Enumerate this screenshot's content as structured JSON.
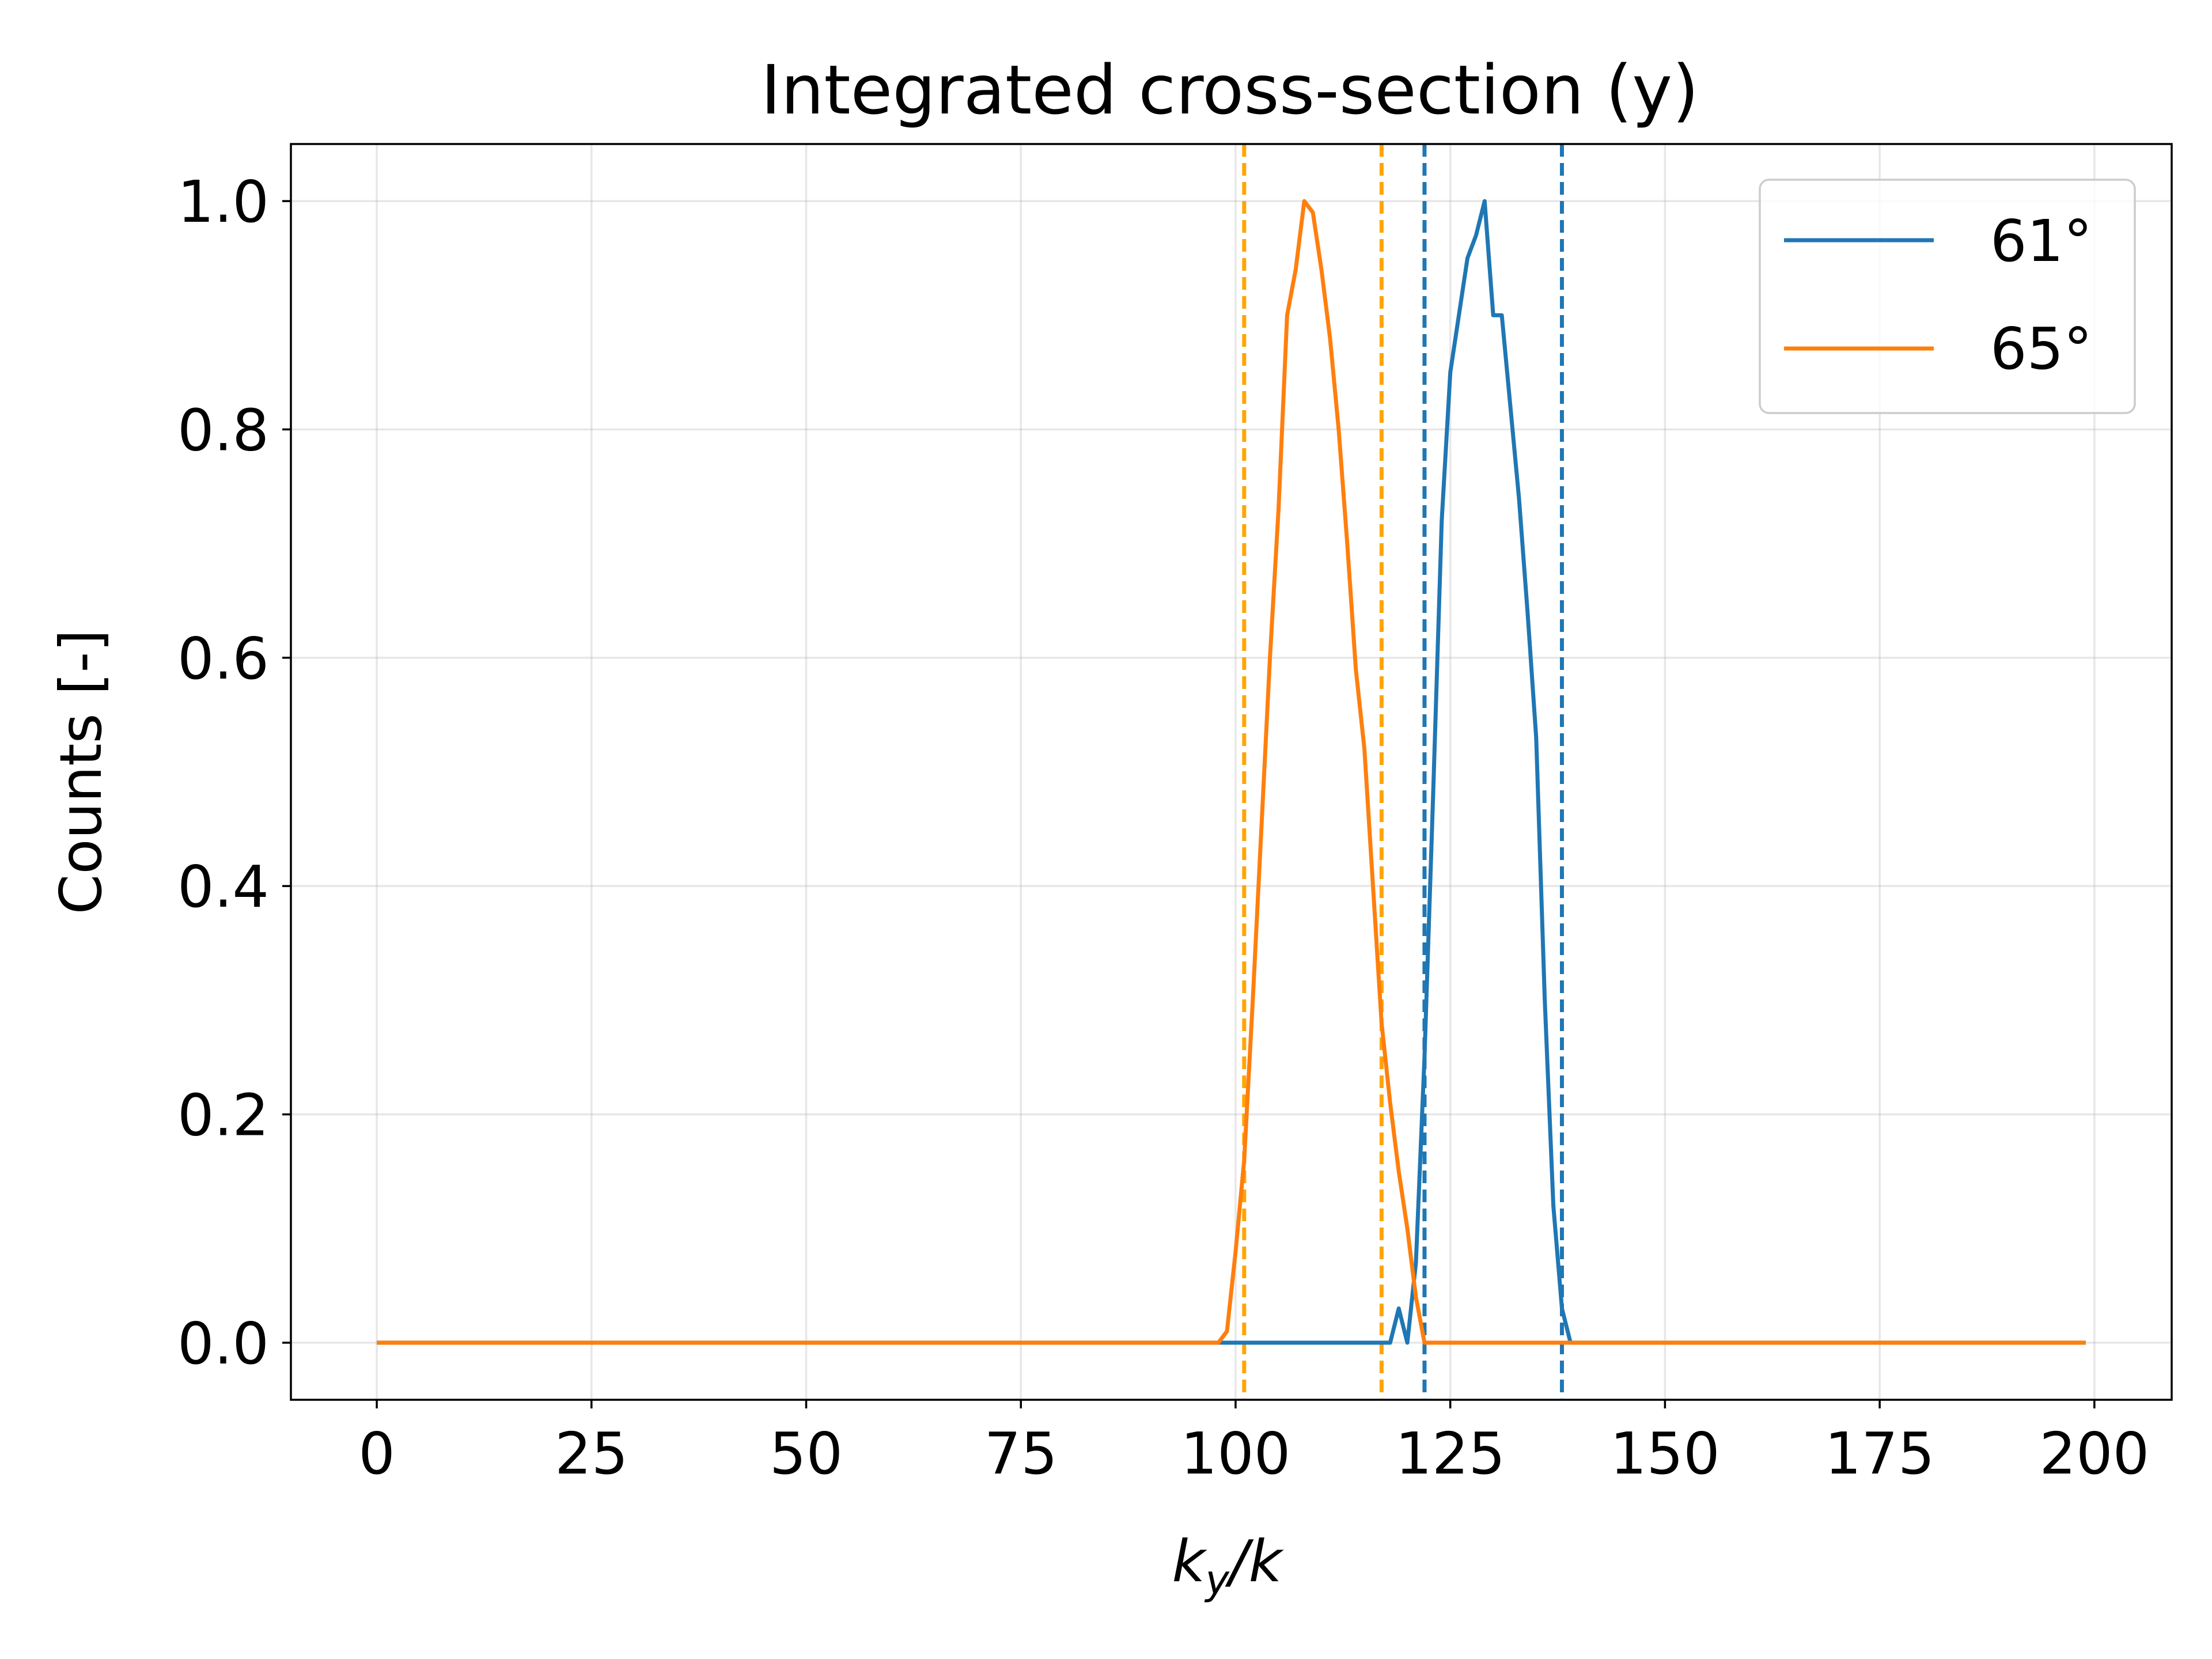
{
  "chart_data": {
    "type": "line",
    "title": "Integrated cross-section (y)",
    "xlabel": "k_y/k",
    "xlabel_parts": {
      "k": "k",
      "sub": "y",
      "slash_k": "/k"
    },
    "ylabel": "Counts [-]",
    "xlim": [
      -10,
      209
    ],
    "ylim": [
      -0.05,
      1.05
    ],
    "x_ticks": [
      0,
      25,
      50,
      75,
      100,
      125,
      150,
      175,
      200
    ],
    "x_tick_labels": [
      "0",
      "25",
      "50",
      "75",
      "100",
      "125",
      "150",
      "175",
      "200"
    ],
    "y_ticks": [
      0.0,
      0.2,
      0.4,
      0.6,
      0.8,
      1.0
    ],
    "y_tick_labels": [
      "0.0",
      "0.2",
      "0.4",
      "0.6",
      "0.8",
      "1.0"
    ],
    "grid": true,
    "legend_position": "top-right",
    "series": [
      {
        "name": "61°",
        "color": "#1f77b4",
        "x": [
          0,
          117,
          118,
          119,
          120,
          121,
          122,
          123,
          124,
          125,
          126,
          127,
          128,
          129,
          130,
          131,
          132,
          133,
          134,
          135,
          136,
          137,
          138,
          139,
          140,
          141,
          199
        ],
        "y": [
          0,
          0,
          0.0,
          0.03,
          0.0,
          0.07,
          0.25,
          0.48,
          0.72,
          0.85,
          0.9,
          0.95,
          0.97,
          1.0,
          0.9,
          0.9,
          0.82,
          0.74,
          0.64,
          0.53,
          0.3,
          0.12,
          0.03,
          0.0,
          0.0,
          0.0,
          0.0
        ]
      },
      {
        "name": "65°",
        "color": "#ff7f0e",
        "x": [
          0,
          98,
          99,
          100,
          101,
          102,
          103,
          104,
          105,
          106,
          107,
          108,
          109,
          110,
          111,
          112,
          113,
          114,
          115,
          116,
          117,
          118,
          119,
          120,
          121,
          122,
          199
        ],
        "y": [
          0,
          0.0,
          0.01,
          0.08,
          0.16,
          0.3,
          0.45,
          0.6,
          0.73,
          0.9,
          0.94,
          1.0,
          0.99,
          0.94,
          0.88,
          0.8,
          0.7,
          0.59,
          0.52,
          0.4,
          0.28,
          0.21,
          0.15,
          0.1,
          0.04,
          0.0,
          0.0
        ]
      }
    ],
    "vlines": [
      {
        "x": 101,
        "color": "#ffa500",
        "style": "dashed"
      },
      {
        "x": 117,
        "color": "#ffa500",
        "style": "dashed"
      },
      {
        "x": 122,
        "color": "#1f77b4",
        "style": "dashed"
      },
      {
        "x": 138,
        "color": "#1f77b4",
        "style": "dashed"
      }
    ]
  }
}
